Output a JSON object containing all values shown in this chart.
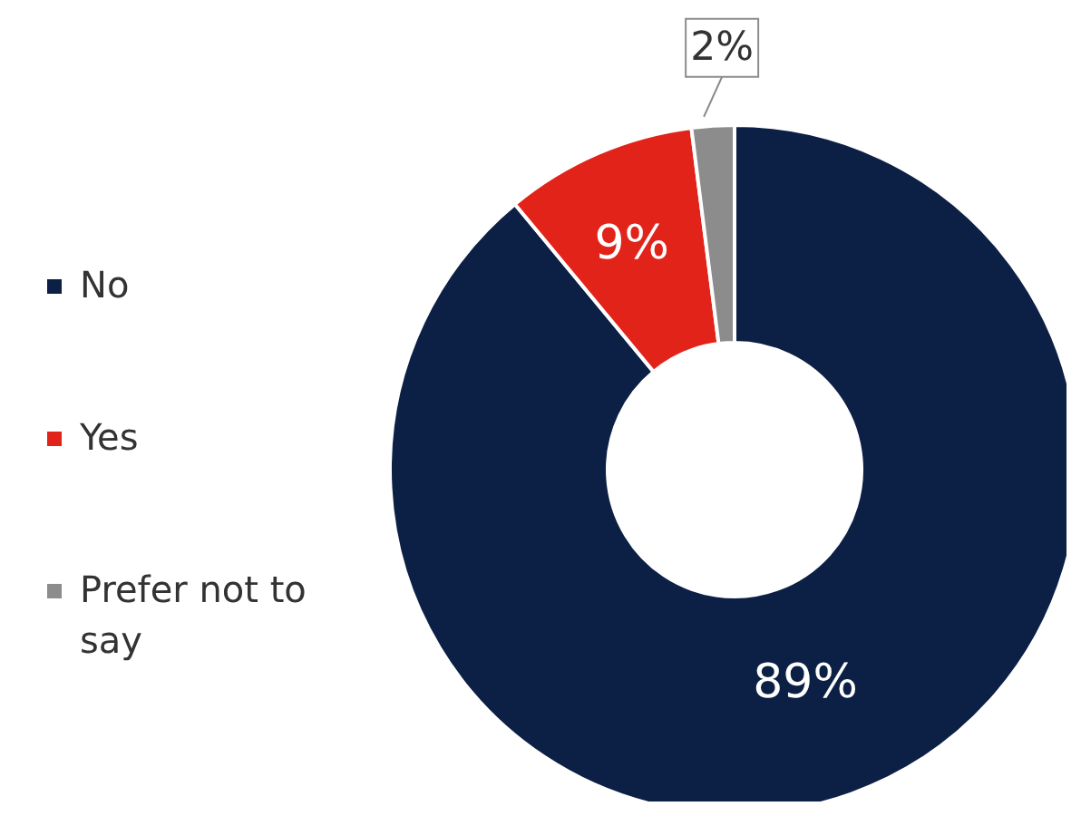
{
  "chart_data": {
    "type": "donut",
    "categories": [
      "No",
      "Yes",
      "Prefer not to say"
    ],
    "values": [
      89,
      9,
      2
    ],
    "colors": [
      "#0c1f44",
      "#e2231a",
      "#8c8c8c"
    ],
    "value_labels": [
      "89%",
      "9%",
      "2%"
    ],
    "legend": "left"
  }
}
